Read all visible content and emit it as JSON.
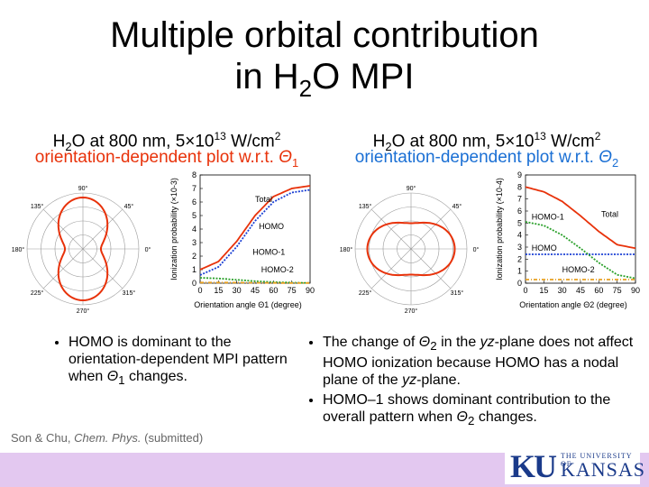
{
  "title": {
    "line1": "Multiple orbital contribution",
    "line2_pre": "in H",
    "line2_sub": "2",
    "line2_post": "O MPI"
  },
  "left": {
    "header": {
      "pre": "H",
      "sub": "2",
      "mid": "O at 800 nm, 5×10",
      "sup": "13",
      "post": " W/cm",
      "sup2": "2"
    },
    "subtitle_pre": "orientation-dependent plot w.r.t. ",
    "subtitle_theta": "Θ",
    "subtitle_sub": "1",
    "subtitle_color": "#e8320a"
  },
  "right": {
    "header": {
      "pre": "H",
      "sub": "2",
      "mid": "O at 800 nm, 5×10",
      "sup": "13",
      "post": " W/cm",
      "sup2": "2"
    },
    "subtitle_pre": "orientation-dependent plot w.r.t. ",
    "subtitle_theta": "Θ",
    "subtitle_sub": "2",
    "subtitle_color": "#1a6fd4"
  },
  "polar_labels": [
    "90°",
    "45°",
    "0°",
    "315°",
    "270°",
    "225°",
    "180°",
    "135°"
  ],
  "chart_data": [
    {
      "type": "line",
      "xlabel": "Orientation angle Θ1 (degree)",
      "ylabel": "Ionization probability (×10-3)",
      "xticks": [
        "0",
        "15",
        "30",
        "45",
        "60",
        "75",
        "90"
      ],
      "yticks": [
        "0",
        "1",
        "2",
        "3",
        "4",
        "5",
        "6",
        "7",
        "8"
      ],
      "xlim": [
        0,
        90
      ],
      "ylim": [
        0,
        8
      ],
      "x": [
        0,
        15,
        30,
        45,
        60,
        75,
        90
      ],
      "series": [
        {
          "name": "Total",
          "values": [
            1.0,
            1.6,
            3.1,
            5.0,
            6.4,
            7.0,
            7.2
          ],
          "color": "#e8320a",
          "style": "solid"
        },
        {
          "name": "HOMO",
          "values": [
            0.6,
            1.2,
            2.7,
            4.6,
            6.0,
            6.7,
            6.9
          ],
          "color": "#1a3fd4",
          "style": "dotted"
        },
        {
          "name": "HOMO-1",
          "values": [
            0.4,
            0.35,
            0.25,
            0.15,
            0.08,
            0.04,
            0.02
          ],
          "color": "#2aa02a",
          "style": "dotted"
        },
        {
          "name": "HOMO-2",
          "values": [
            0.05,
            0.05,
            0.04,
            0.03,
            0.02,
            0.01,
            0.01
          ],
          "color": "#e8a020",
          "style": "dashdot"
        }
      ],
      "annotations": [
        "Total",
        "HOMO",
        "HOMO-1",
        "HOMO-2"
      ]
    },
    {
      "type": "line",
      "xlabel": "Orientation angle Θ2 (degree)",
      "ylabel": "Ionization probability (×10-4)",
      "xticks": [
        "0",
        "15",
        "30",
        "45",
        "60",
        "75",
        "90"
      ],
      "yticks": [
        "0",
        "1",
        "2",
        "3",
        "4",
        "5",
        "6",
        "7",
        "8",
        "9"
      ],
      "xlim": [
        0,
        90
      ],
      "ylim": [
        0,
        9
      ],
      "x": [
        0,
        15,
        30,
        45,
        60,
        75,
        90
      ],
      "series": [
        {
          "name": "Total",
          "values": [
            8.0,
            7.6,
            6.8,
            5.6,
            4.3,
            3.2,
            2.9
          ],
          "color": "#e8320a",
          "style": "solid"
        },
        {
          "name": "HOMO",
          "values": [
            2.4,
            2.4,
            2.4,
            2.4,
            2.4,
            2.4,
            2.4
          ],
          "color": "#1a3fd4",
          "style": "dotted"
        },
        {
          "name": "HOMO-1",
          "values": [
            5.1,
            4.8,
            4.0,
            2.9,
            1.7,
            0.7,
            0.4
          ],
          "color": "#2aa02a",
          "style": "dotted"
        },
        {
          "name": "HOMO-2",
          "values": [
            0.3,
            0.3,
            0.3,
            0.3,
            0.3,
            0.3,
            0.3
          ],
          "color": "#e8a020",
          "style": "dashdot"
        }
      ],
      "annotations": [
        "HOMO-1",
        "Total",
        "HOMO",
        "HOMO-2"
      ]
    }
  ],
  "bullets_left": [
    "HOMO is dominant to the orientation-dependent MPI pattern when Θ1 changes."
  ],
  "bullets_right": [
    "The change of Θ2 in the yz-plane does not affect HOMO ionization because HOMO has a nodal plane of the yz-plane.",
    "HOMO–1 shows dominant contribution to the overall pattern when Θ2 changes."
  ],
  "citation": {
    "authors": "Son & Chu, ",
    "journal": "Chem. Phys.",
    "status": " (submitted)"
  },
  "logo": {
    "ku": "KU",
    "uni": "THE UNIVERSITY OF",
    "kansas": "KANSAS"
  }
}
